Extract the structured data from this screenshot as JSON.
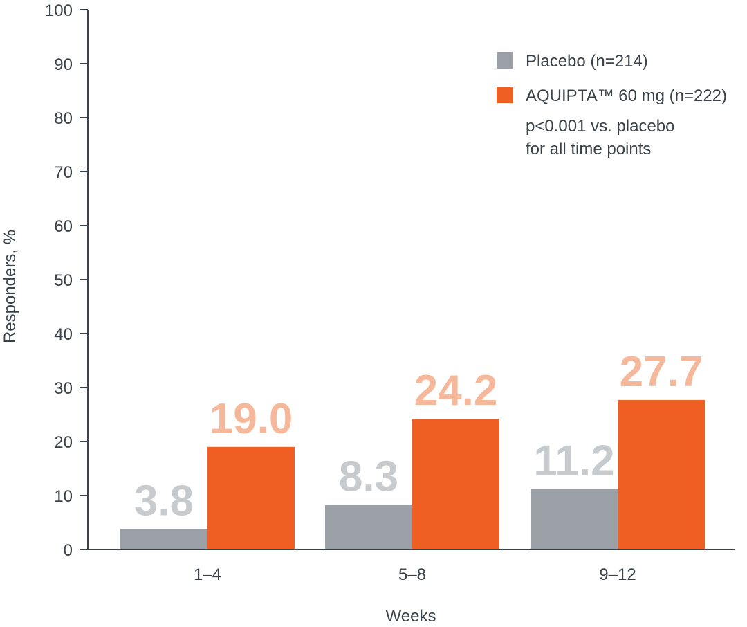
{
  "chart_data": {
    "type": "bar",
    "title": "",
    "xlabel": "Weeks",
    "ylabel": "Responders, %",
    "ylim": [
      0,
      100
    ],
    "yticks": [
      0,
      10,
      20,
      30,
      40,
      50,
      60,
      70,
      80,
      90,
      100
    ],
    "categories": [
      "1–4",
      "5–8",
      "9–12"
    ],
    "series": [
      {
        "name": "Placebo (n=214)",
        "color": "#9aa0a6",
        "label_color": "#c8cbce",
        "values": [
          3.8,
          8.3,
          11.2
        ],
        "labels": [
          "3.8",
          "8.3",
          "11.2"
        ]
      },
      {
        "name": "AQUIPTA™ 60 mg (n=222)",
        "color": "#ef5f24",
        "label_color": "#f6b89b",
        "values": [
          19.0,
          24.2,
          27.7
        ],
        "labels": [
          "19.0",
          "24.2",
          "27.7"
        ]
      }
    ],
    "annotation": [
      "p<0.001 vs. placebo",
      "for all time points"
    ],
    "legend_position": "top-right",
    "grid": false
  }
}
